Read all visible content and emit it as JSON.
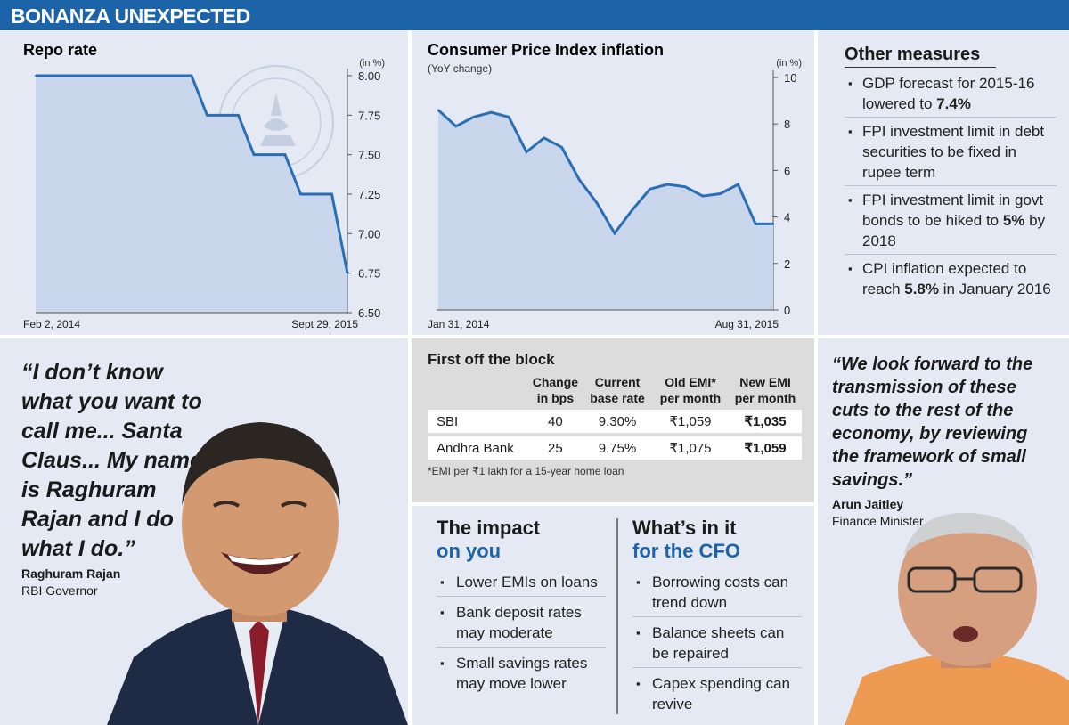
{
  "banner": {
    "title": "BONANZA UNEXPECTED"
  },
  "chart_data": [
    {
      "type": "area",
      "title": "Repo rate",
      "unit": "(in %)",
      "x_start_label": "Feb 2, 2014",
      "x_end_label": "Sept 29, 2015",
      "y_ticks": [
        "8.00",
        "7.75",
        "7.50",
        "7.25",
        "7.00",
        "6.75",
        "6.50"
      ],
      "ylim": [
        6.5,
        8.0
      ],
      "values": [
        8.0,
        8.0,
        8.0,
        8.0,
        8.0,
        8.0,
        8.0,
        8.0,
        8.0,
        8.0,
        8.0,
        7.75,
        7.75,
        7.75,
        7.5,
        7.5,
        7.5,
        7.25,
        7.25,
        7.25,
        6.75
      ],
      "colors": {
        "fill": "#c9d6ec",
        "line": "#2a6fb6"
      }
    },
    {
      "type": "area",
      "title": "Consumer Price Index inflation",
      "subtitle": "(YoY change)",
      "unit": "(in %)",
      "x_start_label": "Jan 31, 2014",
      "x_end_label": "Aug 31, 2015",
      "y_ticks": [
        "10",
        "8",
        "6",
        "4",
        "2",
        "0"
      ],
      "ylim": [
        0,
        10
      ],
      "values": [
        8.6,
        7.9,
        8.3,
        8.5,
        8.3,
        6.8,
        7.4,
        7.0,
        5.6,
        4.6,
        3.3,
        4.3,
        5.2,
        5.4,
        5.3,
        4.9,
        5.0,
        5.4,
        3.7,
        3.7
      ],
      "colors": {
        "fill": "#c9d6ec",
        "line": "#2a6fb6"
      }
    }
  ],
  "other_measures": {
    "title": "Other measures",
    "items": [
      {
        "pre": "GDP forecast for 2015-16 lowered to ",
        "bold": "7.4%",
        "post": ""
      },
      {
        "pre": "FPI investment limit in debt securities to be fixed in rupee term",
        "bold": "",
        "post": ""
      },
      {
        "pre": "FPI investment limit in govt bonds to be hiked to ",
        "bold": "5%",
        "post": " by 2018"
      },
      {
        "pre": "CPI inflation expected to reach ",
        "bold": "5.8%",
        "post": " in January 2016"
      }
    ]
  },
  "quote_rajan": {
    "text": "“I don’t know what you want to call me... Santa Claus... My name is Raghuram Rajan and I do what I do.”",
    "name": "Raghuram Rajan",
    "role": "RBI Governor"
  },
  "first_off_block": {
    "title": "First off the block",
    "headers": [
      "",
      "Change in bps",
      "Current base rate",
      "Old EMI* per month",
      "New EMI per month"
    ],
    "rows": [
      [
        "SBI",
        "40",
        "9.30%",
        "₹1,059",
        "₹1,035"
      ],
      [
        "Andhra Bank",
        "25",
        "9.75%",
        "₹1,075",
        "₹1,059"
      ]
    ],
    "footnote": "*EMI per ₹1 lakh for a 15-year home loan"
  },
  "impact": {
    "title_line1": "The impact",
    "title_line2": "on you",
    "items": [
      "Lower EMIs on loans",
      "Bank deposit rates may moderate",
      "Small savings rates may move lower"
    ]
  },
  "cfo": {
    "title_line1": "What’s in it",
    "title_line2": "for the CFO",
    "items": [
      "Borrowing costs can trend down",
      "Balance sheets can be repaired",
      "Capex spending can revive"
    ]
  },
  "quote_jaitley": {
    "text": "“We look forward to the transmission of these cuts to the rest of the economy, by reviewing the framework of small savings.”",
    "name": "Arun Jaitley",
    "role": "Finance Minister"
  },
  "colors": {
    "brand": "#1d63a8",
    "panel": "#e4e9f3",
    "table_panel": "#dcdcdc"
  }
}
